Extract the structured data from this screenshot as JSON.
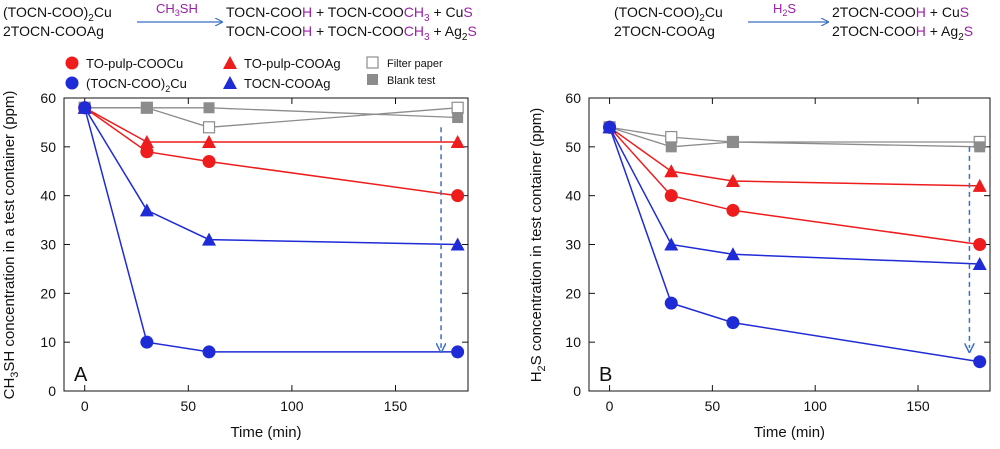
{
  "reactions": {
    "left": {
      "reactant1": "(TOCN-COO)",
      "reactant1_sub": "2",
      "reactant1_tail": "Cu",
      "reactant2": "2TOCN-COOAg",
      "reagent": "CH",
      "reagent_sub": "3",
      "reagent_tail": "SH",
      "product1_a": "TOCN-COO",
      "product1_b": "H",
      "product1_c": " + TOCN-COO",
      "product1_d": "CH",
      "product1_e": "3",
      "product1_f": " + Cu",
      "product1_g": "S",
      "product2_a": "TOCN-COO",
      "product2_b": "H",
      "product2_c": " + TOCN-COO",
      "product2_d": "CH",
      "product2_e": "3",
      "product2_f": " + Ag",
      "product2_g": "2",
      "product2_h": "S"
    },
    "right": {
      "reactant1": "(TOCN-COO)",
      "reactant1_sub": "2",
      "reactant1_tail": "Cu",
      "reactant2": "2TOCN-COOAg",
      "reagent": "H",
      "reagent_sub": "2",
      "reagent_tail": "S",
      "product1_a": "2TOCN-COO",
      "product1_b": "H",
      "product1_c": " + Cu",
      "product1_d": "S",
      "product2_a": "2TOCN-COO",
      "product2_b": "H",
      "product2_c": " + Ag",
      "product2_d": "2",
      "product2_e": "S"
    }
  },
  "legend": {
    "to_pulp_cu": "TO-pulp-COOCu",
    "tocn_cu": "(TOCN-COO)",
    "tocn_cu_sub": "2",
    "tocn_cu_tail": "Cu",
    "to_pulp_ag": "TO-pulp-COOAg",
    "tocn_ag": "TOCN-COOAg",
    "filter": "Filter paper",
    "blank": "Blank test"
  },
  "colors": {
    "red": "#ee1c1c",
    "blue": "#1f2bd6",
    "gray": "#8c8c8c",
    "dashed": "#3b6fc4",
    "purple": "#9b1fa8"
  },
  "chart_data": [
    {
      "type": "line",
      "panel_label": "A",
      "xlabel": "Time (min)",
      "ylabel_pre": "CH",
      "ylabel_sub": "3",
      "ylabel_post": "SH concentration in a test container (ppm)",
      "xlim": [
        -10,
        185
      ],
      "ylim": [
        0,
        60
      ],
      "xticks": [
        0,
        50,
        100,
        150
      ],
      "yticks": [
        0,
        10,
        20,
        30,
        40,
        50,
        60
      ],
      "x": [
        0,
        30,
        60,
        180
      ],
      "series": [
        {
          "name": "TO-pulp-COOCu",
          "values": [
            58,
            49,
            47,
            40
          ],
          "color": "red",
          "marker": "circle"
        },
        {
          "name": "(TOCN-COO)2Cu",
          "values": [
            58,
            10,
            8,
            8
          ],
          "color": "blue",
          "marker": "circle"
        },
        {
          "name": "TO-pulp-COOAg",
          "values": [
            58,
            51,
            51,
            51
          ],
          "color": "red",
          "marker": "triangle"
        },
        {
          "name": "TOCN-COOAg",
          "values": [
            58,
            37,
            31,
            30
          ],
          "color": "blue",
          "marker": "triangle"
        },
        {
          "name": "Filter paper",
          "values": [
            58,
            58,
            54,
            58
          ],
          "color": "gray",
          "marker": "open-square"
        },
        {
          "name": "Blank test",
          "values": [
            58,
            58,
            58,
            56
          ],
          "color": "gray",
          "marker": "square"
        }
      ],
      "arrow": {
        "x": 172,
        "from": 54,
        "to": 8
      }
    },
    {
      "type": "line",
      "panel_label": "B",
      "xlabel": "Time (min)",
      "ylabel_pre": "H",
      "ylabel_sub": "2",
      "ylabel_post": "S concentration in test container (ppm)",
      "xlim": [
        -10,
        185
      ],
      "ylim": [
        0,
        60
      ],
      "xticks": [
        0,
        50,
        100,
        150
      ],
      "yticks": [
        0,
        10,
        20,
        30,
        40,
        50,
        60
      ],
      "x": [
        0,
        30,
        60,
        180
      ],
      "series": [
        {
          "name": "TO-pulp-COOCu",
          "values": [
            54,
            40,
            37,
            30
          ],
          "color": "red",
          "marker": "circle"
        },
        {
          "name": "(TOCN-COO)2Cu",
          "values": [
            54,
            18,
            14,
            6
          ],
          "color": "blue",
          "marker": "circle"
        },
        {
          "name": "TO-pulp-COOAg",
          "values": [
            54,
            45,
            43,
            42
          ],
          "color": "red",
          "marker": "triangle"
        },
        {
          "name": "TOCN-COOAg",
          "values": [
            54,
            30,
            28,
            26
          ],
          "color": "blue",
          "marker": "triangle"
        },
        {
          "name": "Filter paper",
          "values": [
            54,
            52,
            51,
            51
          ],
          "color": "gray",
          "marker": "open-square"
        },
        {
          "name": "Blank test",
          "values": [
            54,
            50,
            51,
            50
          ],
          "color": "gray",
          "marker": "square"
        }
      ],
      "arrow": {
        "x": 175,
        "from": 50,
        "to": 8
      }
    }
  ]
}
